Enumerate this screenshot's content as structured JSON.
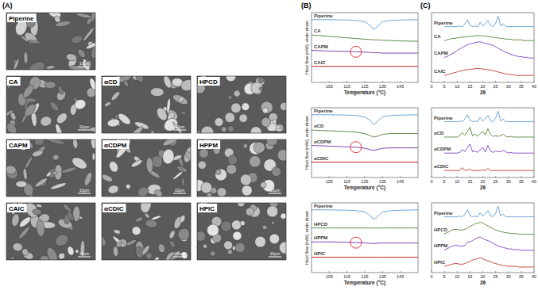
{
  "panel_labels": [
    "(A)",
    "(B)",
    "(C)"
  ],
  "sem_images": {
    "scale_bar": "10μm",
    "labels": [
      "Piperine",
      "CA",
      "αCD",
      "HPCD",
      "CAPM",
      "αCDPM",
      "HPPM",
      "CAIC",
      "αCDIC",
      "HPIC"
    ]
  },
  "chart_data": [
    {
      "type": "line",
      "x_label": "Temperature (°C)",
      "y_label": "Heat flow (mW), endo down",
      "x": [
        95,
        105,
        115,
        120,
        125,
        128,
        130,
        132,
        135,
        140,
        145,
        155
      ],
      "xlim": [
        95,
        155
      ],
      "xticks": [
        105,
        115,
        125,
        135,
        145
      ],
      "ylim": [
        0,
        10
      ],
      "tick_labels": "x",
      "grid": false,
      "series": [
        {
          "name": "Piperine",
          "color": "#5b9bd5",
          "values": [
            9.0,
            9.0,
            8.95,
            8.9,
            8.7,
            8.2,
            7.6,
            8.0,
            8.7,
            8.9,
            8.95,
            9.0
          ]
        },
        {
          "name": "CA",
          "color": "#4f7f3a",
          "values": [
            6.8,
            6.6,
            6.4,
            6.3,
            6.2,
            6.15,
            6.1,
            6.1,
            6.05,
            6.0,
            5.95,
            5.9
          ]
        },
        {
          "name": "CAPM",
          "color": "#7030a0",
          "values": [
            4.6,
            4.5,
            4.45,
            4.4,
            4.35,
            4.3,
            4.25,
            4.25,
            4.2,
            4.2,
            4.2,
            4.2
          ]
        },
        {
          "name": "CAIC",
          "color": "#c00000",
          "values": [
            2.3,
            2.3,
            2.3,
            2.3,
            2.3,
            2.3,
            2.3,
            2.3,
            2.3,
            2.3,
            2.3,
            2.3
          ]
        }
      ]
    },
    {
      "type": "line",
      "x_label": "Temperature (°C)",
      "y_label": "Heat flow (mW), endo down",
      "x": [
        95,
        105,
        115,
        120,
        125,
        128,
        130,
        132,
        135,
        140,
        145,
        155
      ],
      "xlim": [
        95,
        155
      ],
      "xticks": [
        105,
        115,
        125,
        135,
        145
      ],
      "ylim": [
        0,
        10
      ],
      "tick_labels": "x",
      "grid": false,
      "series": [
        {
          "name": "Piperine",
          "color": "#5b9bd5",
          "values": [
            9.0,
            9.0,
            8.95,
            8.9,
            8.7,
            8.2,
            7.6,
            8.0,
            8.7,
            8.9,
            8.95,
            9.0
          ]
        },
        {
          "name": "αCD",
          "color": "#4f7f3a",
          "values": [
            6.8,
            6.7,
            6.6,
            6.5,
            6.3,
            6.0,
            5.8,
            5.9,
            6.2,
            6.3,
            6.3,
            6.3
          ]
        },
        {
          "name": "αCDPM",
          "color": "#7030a0",
          "values": [
            4.6,
            4.5,
            4.4,
            4.35,
            4.2,
            4.0,
            3.9,
            4.0,
            4.2,
            4.25,
            4.25,
            4.25
          ]
        },
        {
          "name": "αCDIC",
          "color": "#c00000",
          "values": [
            2.2,
            2.2,
            2.2,
            2.2,
            2.2,
            2.2,
            2.2,
            2.2,
            2.2,
            2.2,
            2.2,
            2.2
          ]
        }
      ]
    },
    {
      "type": "line",
      "x_label": "Temperature (°C)",
      "y_label": "Heat flow (mW), endo down",
      "x": [
        95,
        105,
        115,
        120,
        125,
        128,
        130,
        132,
        135,
        140,
        145,
        155
      ],
      "xlim": [
        95,
        155
      ],
      "xticks": [
        105,
        115,
        125,
        135,
        145
      ],
      "ylim": [
        0,
        10
      ],
      "tick_labels": "x",
      "grid": false,
      "series": [
        {
          "name": "Piperine",
          "color": "#5b9bd5",
          "values": [
            9.0,
            9.0,
            8.95,
            8.9,
            8.7,
            8.2,
            7.6,
            8.0,
            8.7,
            8.9,
            8.95,
            9.0
          ]
        },
        {
          "name": "HPCD",
          "color": "#4f7f3a",
          "values": [
            6.4,
            6.4,
            6.4,
            6.4,
            6.4,
            6.4,
            6.4,
            6.4,
            6.4,
            6.4,
            6.4,
            6.4
          ]
        },
        {
          "name": "HPPM",
          "color": "#7030a0",
          "values": [
            4.4,
            4.4,
            4.35,
            4.3,
            4.25,
            4.2,
            4.15,
            4.2,
            4.25,
            4.25,
            4.25,
            4.25
          ]
        },
        {
          "name": "HPIC",
          "color": "#c00000",
          "values": [
            2.2,
            2.2,
            2.2,
            2.2,
            2.2,
            2.2,
            2.2,
            2.2,
            2.2,
            2.2,
            2.2,
            2.2
          ]
        }
      ]
    },
    {
      "type": "line",
      "x_label": "2θ",
      "x": [
        5,
        6,
        7,
        8,
        9,
        10,
        11,
        12,
        13,
        14,
        15,
        16,
        17,
        18,
        19,
        20,
        21,
        22,
        23,
        24,
        25,
        26,
        27,
        28,
        29,
        30,
        31,
        32,
        33,
        34,
        35,
        36,
        37,
        38,
        39,
        40
      ],
      "xlim": [
        0,
        40
      ],
      "xticks": [
        0,
        5,
        10,
        15,
        20,
        25,
        30,
        35,
        40
      ],
      "ylim": [
        0,
        100
      ],
      "tick_labels": "x",
      "grid": false,
      "series": [
        {
          "name": "Piperine",
          "color": "#5b9bd5",
          "values": [
            80,
            80,
            80,
            80,
            80,
            80,
            81,
            80,
            84,
            90,
            82,
            80,
            81,
            80,
            86,
            81,
            84,
            89,
            82,
            80,
            85,
            95,
            81,
            84,
            80,
            80,
            80,
            80,
            80,
            80,
            80,
            80,
            80,
            80,
            80,
            80
          ]
        },
        {
          "name": "CA",
          "color": "#548235",
          "values": [
            60,
            61,
            62,
            63,
            63,
            64,
            64,
            65,
            65,
            66,
            66,
            66,
            67,
            67,
            67,
            67,
            66,
            66,
            65,
            65,
            64,
            64,
            63,
            63,
            62,
            62,
            62,
            61,
            61,
            61,
            61,
            60,
            60,
            60,
            60,
            60
          ]
        },
        {
          "name": "CAPM",
          "color": "#7b3fbf",
          "values": [
            36,
            37,
            39,
            41,
            43,
            46,
            48,
            50,
            52,
            54,
            55,
            56,
            57,
            58,
            58,
            57,
            56,
            55,
            54,
            53,
            51,
            49,
            47,
            45,
            43,
            42,
            40,
            39,
            38,
            37,
            37,
            36,
            36,
            35,
            35,
            35
          ]
        },
        {
          "name": "CAIC",
          "color": "#c0392b",
          "values": [
            10,
            11,
            12,
            13,
            14,
            15,
            16,
            17,
            18,
            18,
            19,
            19,
            20,
            20,
            20,
            19,
            19,
            18,
            18,
            17,
            16,
            15,
            14,
            13,
            12,
            12,
            11,
            11,
            10,
            10,
            10,
            10,
            10,
            10,
            10,
            10
          ]
        }
      ]
    },
    {
      "type": "line",
      "x_label": "2θ",
      "x": [
        5,
        6,
        7,
        8,
        9,
        10,
        11,
        12,
        13,
        14,
        15,
        16,
        17,
        18,
        19,
        20,
        21,
        22,
        23,
        24,
        25,
        26,
        27,
        28,
        29,
        30,
        31,
        32,
        33,
        34,
        35,
        36,
        37,
        38,
        39,
        40
      ],
      "xlim": [
        0,
        40
      ],
      "xticks": [
        0,
        5,
        10,
        15,
        20,
        25,
        30,
        35,
        40
      ],
      "ylim": [
        0,
        100
      ],
      "tick_labels": "x",
      "grid": false,
      "series": [
        {
          "name": "Piperine",
          "color": "#5b9bd5",
          "values": [
            80,
            80,
            80,
            80,
            80,
            80,
            81,
            80,
            84,
            90,
            82,
            80,
            81,
            80,
            86,
            81,
            84,
            89,
            82,
            80,
            85,
            95,
            81,
            84,
            80,
            80,
            80,
            80,
            80,
            80,
            80,
            80,
            80,
            80,
            80,
            80
          ]
        },
        {
          "name": "αCD",
          "color": "#548235",
          "values": [
            58,
            58,
            58,
            58,
            58,
            58,
            60,
            64,
            61,
            66,
            72,
            60,
            62,
            59,
            63,
            66,
            61,
            70,
            62,
            59,
            60,
            59,
            60,
            62,
            59,
            58,
            59,
            58,
            58,
            58,
            58,
            58,
            58,
            58,
            58,
            58
          ]
        },
        {
          "name": "αCDPM",
          "color": "#7b3fbf",
          "values": [
            35,
            35,
            35,
            35,
            35,
            35,
            36,
            40,
            37,
            43,
            48,
            37,
            38,
            36,
            40,
            43,
            37,
            46,
            38,
            36,
            38,
            37,
            37,
            39,
            37,
            35,
            36,
            35,
            35,
            35,
            35,
            35,
            35,
            35,
            35,
            35
          ]
        },
        {
          "name": "αCDIC",
          "color": "#c0392b",
          "values": [
            10,
            10,
            10,
            10,
            10,
            10,
            10,
            14,
            10,
            11,
            12,
            10,
            10,
            10,
            10,
            11,
            10,
            13,
            10,
            10,
            10,
            10,
            10,
            10,
            10,
            10,
            10,
            10,
            10,
            10,
            10,
            10,
            10,
            10,
            10,
            10
          ]
        }
      ]
    },
    {
      "type": "line",
      "x_label": "2θ",
      "x": [
        5,
        6,
        7,
        8,
        9,
        10,
        11,
        12,
        13,
        14,
        15,
        16,
        17,
        18,
        19,
        20,
        21,
        22,
        23,
        24,
        25,
        26,
        27,
        28,
        29,
        30,
        31,
        32,
        33,
        34,
        35,
        36,
        37,
        38,
        39,
        40
      ],
      "xlim": [
        0,
        40
      ],
      "xticks": [
        0,
        5,
        10,
        15,
        20,
        25,
        30,
        35,
        40
      ],
      "ylim": [
        0,
        100
      ],
      "tick_labels": "x",
      "grid": false,
      "series": [
        {
          "name": "Piperine",
          "color": "#5b9bd5",
          "values": [
            80,
            80,
            80,
            80,
            80,
            80,
            81,
            80,
            84,
            90,
            82,
            80,
            81,
            80,
            86,
            81,
            84,
            89,
            82,
            80,
            85,
            95,
            81,
            84,
            80,
            80,
            80,
            80,
            80,
            80,
            80,
            80,
            80,
            80,
            80,
            80
          ]
        },
        {
          "name": "HPCD",
          "color": "#548235",
          "values": [
            56,
            57,
            59,
            61,
            62,
            62,
            61,
            61,
            62,
            64,
            66,
            68,
            70,
            71,
            72,
            71,
            69,
            67,
            65,
            63,
            61,
            60,
            59,
            58,
            57,
            57,
            56,
            56,
            56,
            55,
            55,
            55,
            55,
            55,
            55,
            55
          ]
        },
        {
          "name": "HPPM",
          "color": "#7b3fbf",
          "values": [
            33,
            34,
            36,
            38,
            39,
            39,
            38,
            38,
            39,
            44,
            44,
            46,
            48,
            50,
            51,
            49,
            47,
            46,
            44,
            42,
            40,
            38,
            37,
            36,
            35,
            34,
            34,
            33,
            33,
            33,
            32,
            32,
            32,
            32,
            32,
            32
          ]
        },
        {
          "name": "HPIC",
          "color": "#c0392b",
          "values": [
            9,
            10,
            11,
            12,
            13,
            13,
            12,
            12,
            13,
            15,
            16,
            18,
            19,
            20,
            21,
            20,
            18,
            17,
            16,
            14,
            13,
            12,
            11,
            10,
            10,
            9,
            9,
            9,
            9,
            8,
            8,
            8,
            8,
            8,
            8,
            8
          ]
        }
      ]
    }
  ]
}
